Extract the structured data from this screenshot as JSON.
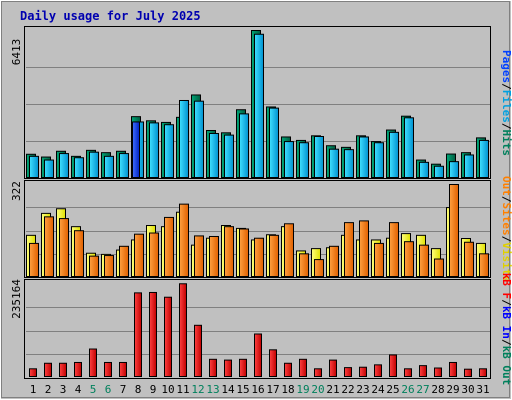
{
  "title": "Daily usage for July 2025",
  "colors": {
    "background": "#c0c0c0",
    "title_text": "#0000b0",
    "hits": "#00805c",
    "files": "#00c0ff",
    "pages": "#0040ff",
    "visits": "#ffff00",
    "sites": "#ff8000",
    "kb_out": "#ff8000",
    "kb_in": "#0000ff",
    "kb_f": "#ff0000",
    "weekend_label": "#00805c"
  },
  "chart_data": [
    {
      "type": "bar",
      "panel": "top",
      "max_label": "6413",
      "ylim": [
        0,
        6413
      ],
      "grid": true,
      "legend": [
        "Pages",
        "Files",
        "Hits"
      ],
      "categories": [
        "1",
        "2",
        "3",
        "4",
        "5",
        "6",
        "7",
        "8",
        "9",
        "10",
        "11",
        "12",
        "13",
        "14",
        "15",
        "16",
        "17",
        "18",
        "19",
        "20",
        "21",
        "22",
        "23",
        "24",
        "25",
        "26",
        "27",
        "28",
        "29",
        "30",
        "31"
      ],
      "series": [
        {
          "name": "Hits",
          "values": [
            1050,
            930,
            1180,
            960,
            1220,
            1120,
            1180,
            2680,
            2500,
            2430,
            2650,
            3620,
            2080,
            1980,
            2980,
            6413,
            3100,
            1800,
            1650,
            1850,
            1420,
            1350,
            1850,
            1600,
            2100,
            2700,
            800,
            620,
            1060,
            1120,
            1760
          ]
        },
        {
          "name": "Files",
          "values": [
            960,
            800,
            1080,
            900,
            1140,
            960,
            1080,
            2450,
            2410,
            2330,
            3380,
            3350,
            1950,
            1880,
            2800,
            6250,
            3050,
            1600,
            1550,
            1820,
            1270,
            1250,
            1800,
            1550,
            2000,
            2630,
            700,
            530,
            730,
            1020,
            1650
          ]
        },
        {
          "name": "Pages",
          "values": [
            0,
            0,
            0,
            0,
            0,
            0,
            0,
            2450,
            0,
            0,
            0,
            0,
            0,
            0,
            0,
            0,
            0,
            0,
            0,
            0,
            0,
            0,
            0,
            0,
            0,
            0,
            0,
            0,
            0,
            0,
            0
          ]
        }
      ]
    },
    {
      "type": "bar",
      "panel": "middle",
      "max_label": "322",
      "ylim": [
        0,
        322
      ],
      "grid": true,
      "legend": [
        "Visits",
        "Sites",
        "Out"
      ],
      "categories": [
        "1",
        "2",
        "3",
        "4",
        "5",
        "6",
        "7",
        "8",
        "9",
        "10",
        "11",
        "12",
        "13",
        "14",
        "15",
        "16",
        "17",
        "18",
        "19",
        "20",
        "21",
        "22",
        "23",
        "24",
        "25",
        "26",
        "27",
        "28",
        "29",
        "30",
        "31"
      ],
      "series": [
        {
          "name": "Visits",
          "values": [
            146,
            222,
            238,
            176,
            84,
            80,
            95,
            130,
            180,
            176,
            226,
            112,
            136,
            180,
            170,
            130,
            148,
            176,
            92,
            100,
            103,
            146,
            130,
            130,
            136,
            152,
            146,
            100,
            242,
            135,
            118
          ]
        },
        {
          "name": "Sites",
          "values": [
            118,
            210,
            204,
            162,
            74,
            76,
            108,
            150,
            154,
            208,
            254,
            144,
            142,
            176,
            168,
            136,
            146,
            186,
            82,
            62,
            108,
            190,
            196,
            118,
            190,
            124,
            112,
            64,
            322,
            122,
            82
          ]
        }
      ]
    },
    {
      "type": "bar",
      "panel": "bottom",
      "max_label": "235164",
      "ylim": [
        0,
        235164
      ],
      "grid": true,
      "legend": [
        "kB F",
        "kB In",
        "kB Out"
      ],
      "categories": [
        "1",
        "2",
        "3",
        "4",
        "5",
        "6",
        "7",
        "8",
        "9",
        "10",
        "11",
        "12",
        "13",
        "14",
        "15",
        "16",
        "17",
        "18",
        "19",
        "20",
        "21",
        "22",
        "23",
        "24",
        "25",
        "26",
        "27",
        "28",
        "29",
        "30",
        "31"
      ],
      "series": [
        {
          "name": "kB F",
          "values": [
            22000,
            36000,
            36000,
            38000,
            72000,
            38000,
            38000,
            214000,
            215000,
            203000,
            237000,
            132000,
            46000,
            44000,
            46000,
            110000,
            70000,
            36000,
            46000,
            22000,
            44000,
            25000,
            26000,
            32000,
            57000,
            22000,
            30000,
            24000,
            38000,
            21000,
            22000
          ]
        }
      ]
    }
  ],
  "x_axis": {
    "labels": [
      "1",
      "2",
      "3",
      "4",
      "5",
      "6",
      "7",
      "8",
      "9",
      "10",
      "11",
      "12",
      "13",
      "14",
      "15",
      "16",
      "17",
      "18",
      "19",
      "20",
      "21",
      "22",
      "23",
      "24",
      "25",
      "26",
      "27",
      "28",
      "29",
      "30",
      "31"
    ],
    "weekend_days": [
      "5",
      "6",
      "12",
      "13",
      "19",
      "20",
      "26",
      "27"
    ]
  }
}
